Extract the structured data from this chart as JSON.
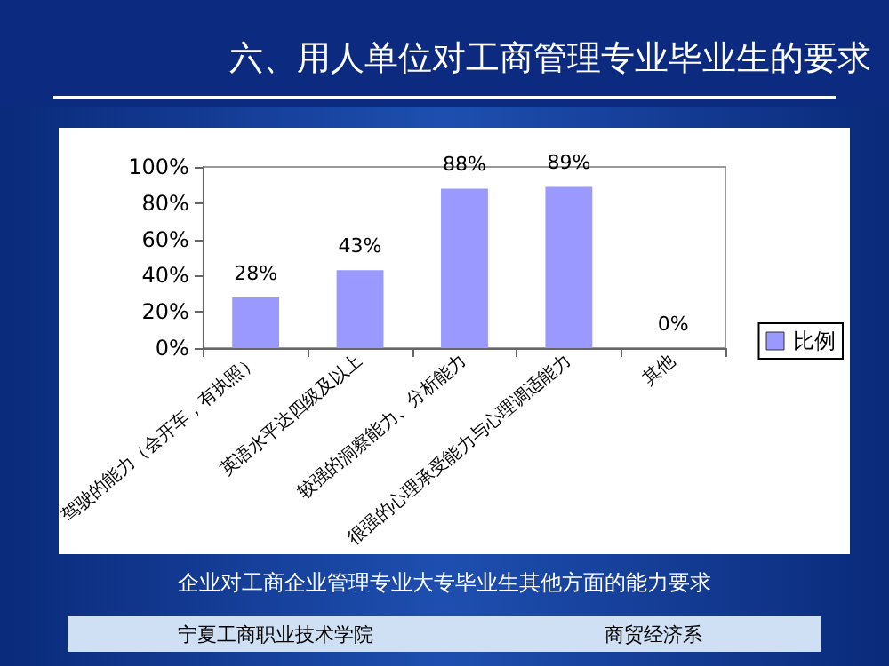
{
  "chart_data": {
    "type": "bar",
    "title": "六、用人单位对工商管理专业毕业生的要求",
    "categories": [
      "驾驶的能力（会开车，有执照）",
      "英语水平达四级及以上",
      "较强的洞察能力、分析能力",
      "很强的心理承受能力与心理调适能力",
      "其他"
    ],
    "series": [
      {
        "name": "比例",
        "color": "#9999ff",
        "values": [
          28,
          43,
          88,
          89,
          0
        ],
        "value_labels": [
          "28%",
          "43%",
          "88%",
          "89%",
          "0%"
        ]
      }
    ],
    "ylim": [
      0,
      100
    ],
    "yticks": [
      {
        "value": 0,
        "label": "0%"
      },
      {
        "value": 20,
        "label": "20%"
      },
      {
        "value": 40,
        "label": "40%"
      },
      {
        "value": 60,
        "label": "60%"
      },
      {
        "value": 80,
        "label": "80%"
      },
      {
        "value": 100,
        "label": "100%"
      }
    ],
    "grid": false,
    "legend": "right",
    "annotations": [
      "企业对工商企业管理专业大专毕业生其他方面的能力要求",
      "宁夏工商职业技术学院",
      "商贸经济系"
    ]
  }
}
